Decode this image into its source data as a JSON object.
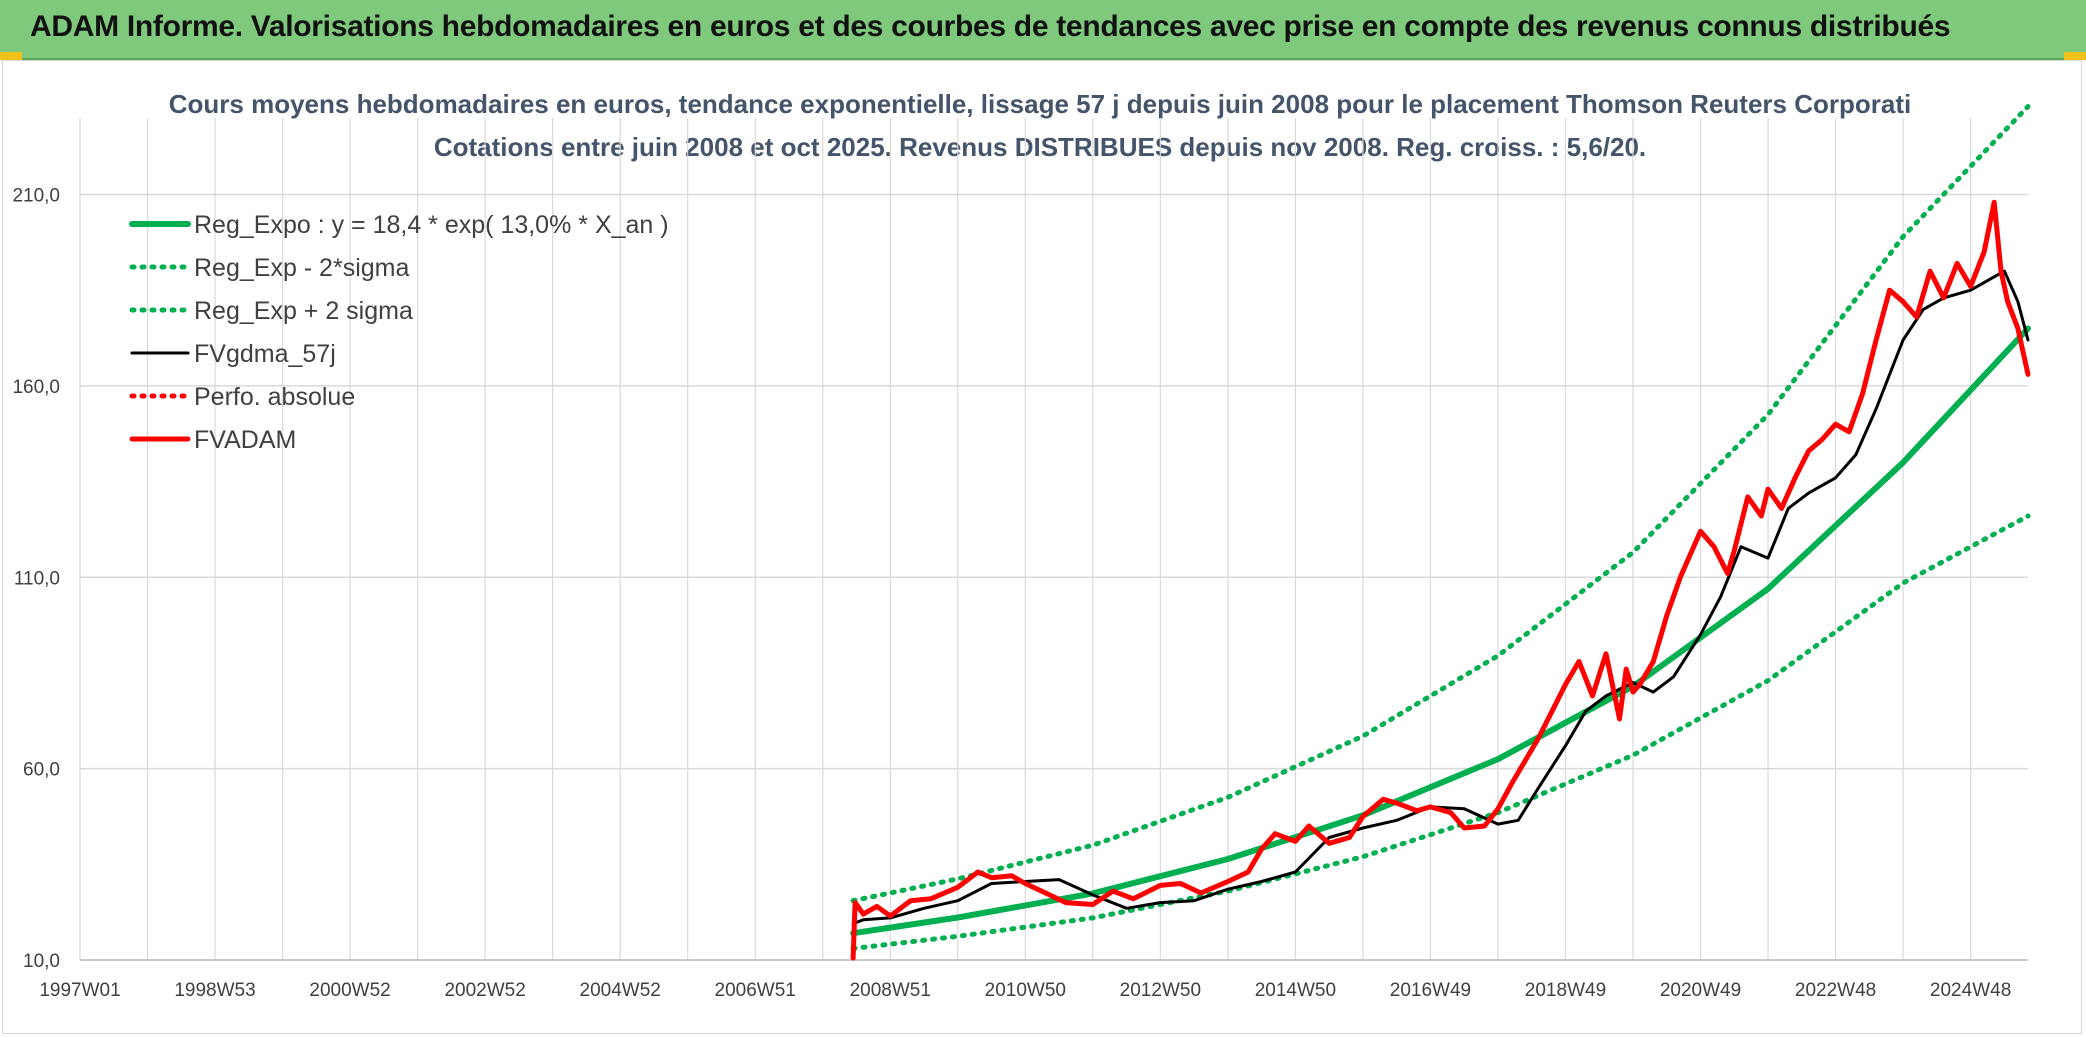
{
  "header": {
    "banner_title": "ADAM Informe. Valorisations hebdomadaires en euros et des courbes de tendances avec prise en compte des revenus connus distribués"
  },
  "colors": {
    "banner": "#7ec97b",
    "reg_expo": "#00b050",
    "fvgdma": "#000000",
    "fvadam": "#ff0000",
    "perfo": "#ff0000",
    "title": "#44546a",
    "grid": "#d9d9d9"
  },
  "chart_data": {
    "type": "line",
    "title": "Cours moyens hebdomadaires en euros, tendance exponentielle, lissage 57 j depuis juin 2008 pour le placement Thomson Reuters Corporati",
    "subtitle": "Cotations entre juin 2008 et oct 2025. Revenus DISTRIBUES depuis nov 2008. Reg. croiss. : 5,6/20.",
    "xlabel": "",
    "ylabel": "",
    "x_range_years": [
      1997.0,
      2025.85
    ],
    "ylim": [
      10,
      230
    ],
    "y_ticks": [
      10,
      60,
      110,
      160,
      210
    ],
    "y_tick_labels": [
      "10,0",
      "60,0",
      "110,0",
      "160,0",
      "210,0"
    ],
    "x_ticks": [
      {
        "year": 1997.0,
        "label": "1997W01"
      },
      {
        "year": 1999.0,
        "label": "1998W53"
      },
      {
        "year": 2001.0,
        "label": "2000W52"
      },
      {
        "year": 2003.0,
        "label": "2002W52"
      },
      {
        "year": 2005.0,
        "label": "2004W52"
      },
      {
        "year": 2007.0,
        "label": "2006W51"
      },
      {
        "year": 2009.0,
        "label": "2008W51"
      },
      {
        "year": 2011.0,
        "label": "2010W50"
      },
      {
        "year": 2013.0,
        "label": "2012W50"
      },
      {
        "year": 2015.0,
        "label": "2014W50"
      },
      {
        "year": 2017.0,
        "label": "2016W49"
      },
      {
        "year": 2019.0,
        "label": "2018W49"
      },
      {
        "year": 2021.0,
        "label": "2020W49"
      },
      {
        "year": 2023.0,
        "label": "2022W48"
      },
      {
        "year": 2025.0,
        "label": "2024W48"
      }
    ],
    "grid": true,
    "legend_position": "top-left",
    "series": [
      {
        "name": "Reg_Expo : y = 18,4 * exp( 13,0% *  X_an )",
        "style": "solid-thick",
        "color": "#00b050",
        "x": [
          2008.45,
          2010,
          2012,
          2014,
          2016,
          2018,
          2020,
          2022,
          2024,
          2025.85
        ],
        "y": [
          17.0,
          21.1,
          27.4,
          36.4,
          47.8,
          62.5,
          81.5,
          107.0,
          140.0,
          175.0
        ]
      },
      {
        "name": "Reg_Exp - 2*sigma",
        "style": "dotted",
        "color": "#00b050",
        "x": [
          2008.45,
          2010,
          2012,
          2014,
          2016,
          2018,
          2020,
          2022,
          2024,
          2025.85
        ],
        "y": [
          13.0,
          16.2,
          21.0,
          28.0,
          37.0,
          48.5,
          63.5,
          83.0,
          108.5,
          126.0
        ]
      },
      {
        "name": "Reg_Exp + 2 sigma",
        "style": "dotted",
        "color": "#00b050",
        "x": [
          2008.45,
          2010,
          2012,
          2014,
          2016,
          2018,
          2020,
          2022,
          2024,
          2025.85
        ],
        "y": [
          25.5,
          31.2,
          40.0,
          52.5,
          68.5,
          89.5,
          116.5,
          152.5,
          199.0,
          233.0
        ]
      },
      {
        "name": "FVgdma_57j",
        "style": "solid",
        "color": "#000000",
        "x": [
          2008.45,
          2008.6,
          2009.0,
          2009.5,
          2010.0,
          2010.5,
          2011.0,
          2011.5,
          2012.0,
          2012.5,
          2013.0,
          2013.5,
          2014.0,
          2014.5,
          2015.0,
          2015.5,
          2016.0,
          2016.5,
          2017.0,
          2017.5,
          2018.0,
          2018.3,
          2018.6,
          2019.0,
          2019.3,
          2019.6,
          2020.0,
          2020.3,
          2020.6,
          2021.0,
          2021.3,
          2021.6,
          2022.0,
          2022.3,
          2022.6,
          2023.0,
          2023.3,
          2023.6,
          2024.0,
          2024.3,
          2024.6,
          2025.0,
          2025.3,
          2025.5,
          2025.7,
          2025.85
        ],
        "y": [
          19.5,
          20.5,
          21.0,
          23.5,
          25.5,
          30.0,
          30.5,
          31.0,
          27.0,
          23.5,
          25.0,
          25.5,
          28.5,
          30.5,
          33.0,
          42.0,
          44.5,
          46.5,
          50.0,
          49.5,
          45.5,
          46.5,
          55.0,
          66.0,
          75.0,
          79.0,
          82.5,
          80.0,
          84.0,
          95.0,
          105.0,
          118.0,
          115.0,
          128.0,
          132.0,
          136.0,
          142.0,
          154.0,
          172.0,
          180.0,
          183.0,
          185.0,
          188.0,
          190.0,
          182.0,
          172.0
        ]
      },
      {
        "name": "Perfo. absolue",
        "style": "dotted",
        "color": "#ff0000",
        "x": [],
        "y": []
      },
      {
        "name": "FVADAM",
        "style": "solid-thick",
        "color": "#ff0000",
        "x": [
          2008.45,
          2008.48,
          2008.6,
          2008.8,
          2009.0,
          2009.3,
          2009.6,
          2010.0,
          2010.3,
          2010.5,
          2010.8,
          2011.0,
          2011.3,
          2011.6,
          2012.0,
          2012.3,
          2012.6,
          2013.0,
          2013.3,
          2013.6,
          2014.0,
          2014.3,
          2014.5,
          2014.7,
          2015.0,
          2015.2,
          2015.5,
          2015.8,
          2016.0,
          2016.3,
          2016.5,
          2016.8,
          2017.0,
          2017.3,
          2017.5,
          2017.8,
          2018.0,
          2018.2,
          2018.4,
          2018.6,
          2018.8,
          2019.0,
          2019.2,
          2019.4,
          2019.6,
          2019.8,
          2019.9,
          2020.0,
          2020.1,
          2020.3,
          2020.5,
          2020.7,
          2021.0,
          2021.2,
          2021.4,
          2021.5,
          2021.7,
          2021.9,
          2022.0,
          2022.2,
          2022.4,
          2022.6,
          2022.8,
          2023.0,
          2023.2,
          2023.4,
          2023.6,
          2023.8,
          2024.0,
          2024.2,
          2024.4,
          2024.6,
          2024.8,
          2025.0,
          2025.2,
          2025.35,
          2025.45,
          2025.55,
          2025.7,
          2025.85
        ],
        "y": [
          10.5,
          25.0,
          22.0,
          24.0,
          21.5,
          25.5,
          26.0,
          29.0,
          33.0,
          31.5,
          32.0,
          30.0,
          27.5,
          25.0,
          24.5,
          28.0,
          26.0,
          29.5,
          30.0,
          27.5,
          30.5,
          33.0,
          39.0,
          43.0,
          41.0,
          45.0,
          40.5,
          42.0,
          47.5,
          52.0,
          51.0,
          49.0,
          50.0,
          48.5,
          44.5,
          45.0,
          49.5,
          56.0,
          62.0,
          68.0,
          75.0,
          82.0,
          88.0,
          79.0,
          90.0,
          73.0,
          86.0,
          80.0,
          82.0,
          88.0,
          100.0,
          110.0,
          122.0,
          118.0,
          111.0,
          117.0,
          131.0,
          126.0,
          133.0,
          128.0,
          136.0,
          143.0,
          146.0,
          150.0,
          148.0,
          158.0,
          172.0,
          185.0,
          182.0,
          178.0,
          190.0,
          183.0,
          192.0,
          186.0,
          195.0,
          208.0,
          190.0,
          182.0,
          175.0,
          163.0
        ]
      }
    ]
  }
}
